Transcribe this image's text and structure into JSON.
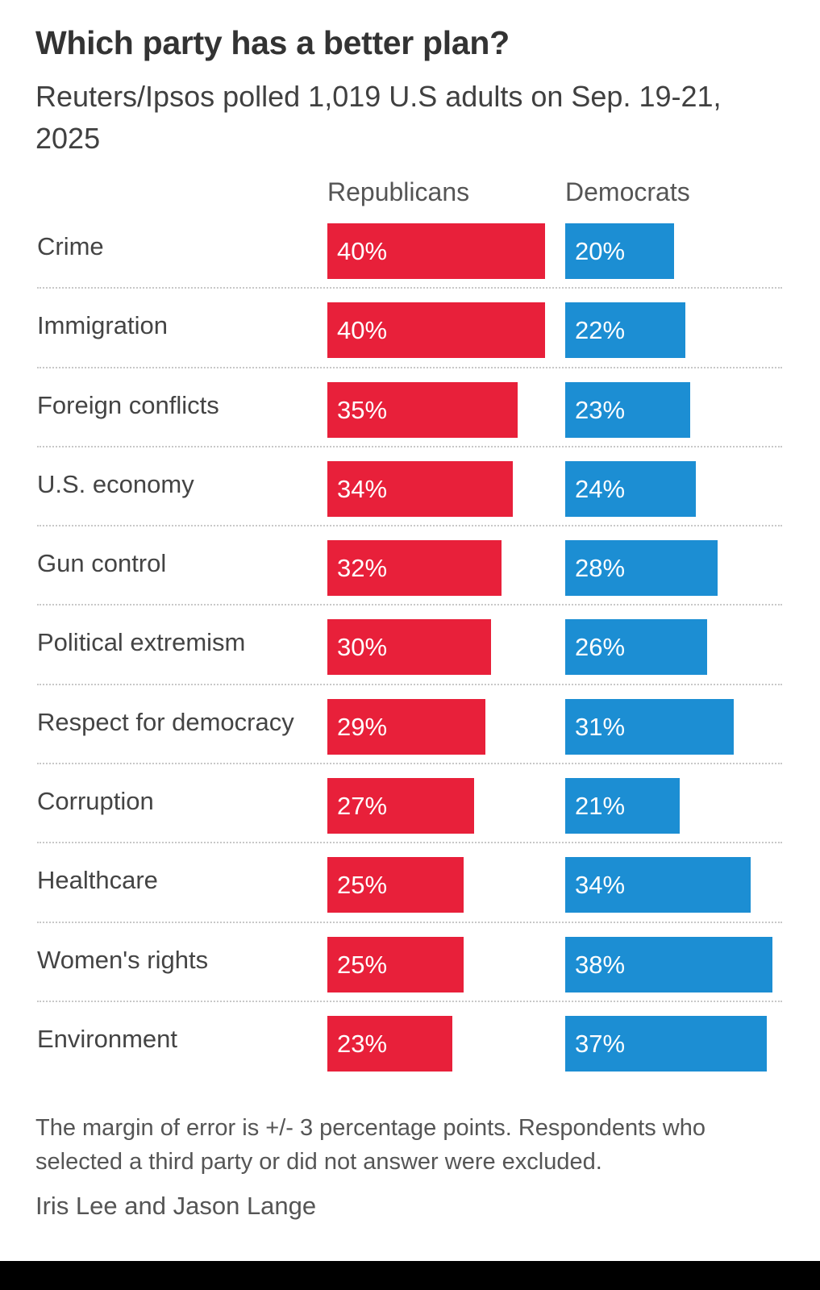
{
  "chart_data": {
    "type": "bar",
    "title": "Which party has a better plan?",
    "subtitle": "Reuters/Ipsos polled 1,019 U.S adults on Sep. 19-21, 2025",
    "categories": [
      "Crime",
      "Immigration",
      "Foreign conflicts",
      "U.S. economy",
      "Gun control",
      "Political extremism",
      "Respect for democracy",
      "Corruption",
      "Healthcare",
      "Women's rights",
      "Environment"
    ],
    "series": [
      {
        "name": "Republicans",
        "color": "#e8203a",
        "values": [
          40,
          40,
          35,
          34,
          32,
          30,
          29,
          27,
          25,
          25,
          23
        ],
        "labels": [
          "40%",
          "40%",
          "35%",
          "34%",
          "32%",
          "30%",
          "29%",
          "27%",
          "25%",
          "25%",
          "23%"
        ]
      },
      {
        "name": "Democrats",
        "color": "#1c8ed3",
        "values": [
          20,
          22,
          23,
          24,
          28,
          26,
          31,
          21,
          34,
          38,
          37
        ],
        "labels": [
          "20%",
          "22%",
          "23%",
          "24%",
          "28%",
          "26%",
          "31%",
          "21%",
          "34%",
          "38%",
          "37%"
        ]
      }
    ],
    "xlim": [
      0,
      40
    ],
    "unit": "%",
    "xlabel": "",
    "ylabel": "",
    "note": "The margin of error is +/- 3 percentage points. Respondents who selected a third party or did not answer were excluded.",
    "credit": "Iris Lee and Jason Lange"
  }
}
